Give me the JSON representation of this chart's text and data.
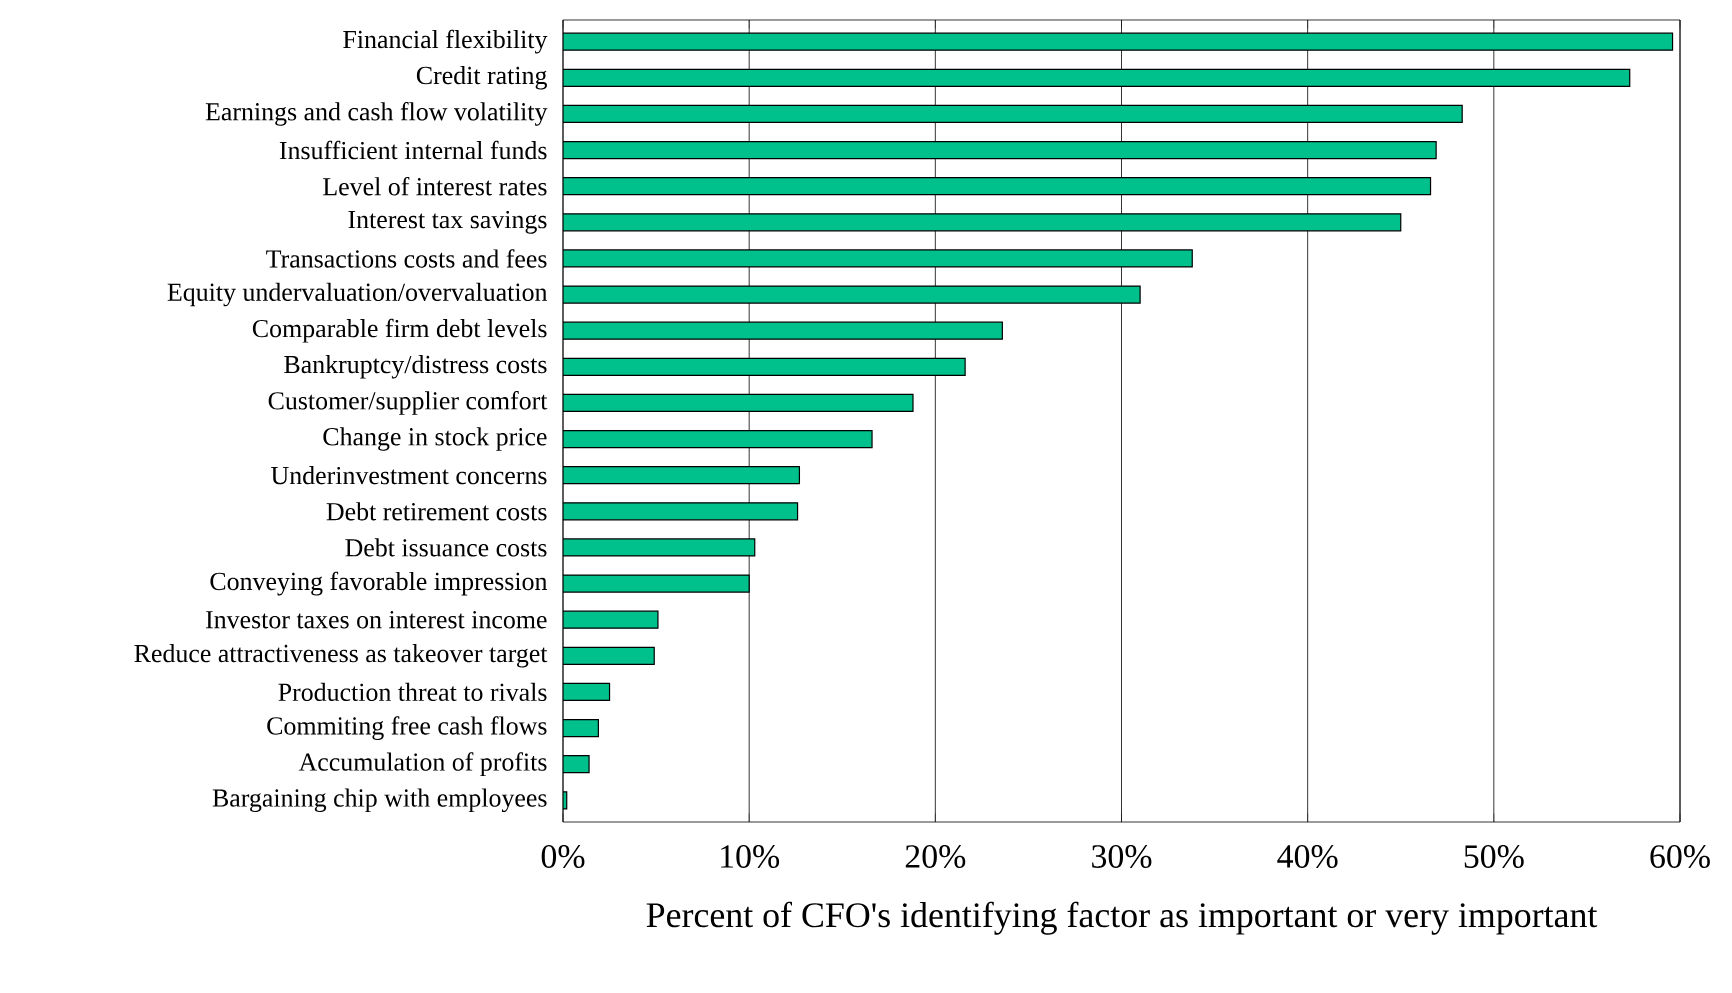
{
  "chart_data": {
    "type": "bar",
    "orientation": "horizontal",
    "xlabel": "Percent of CFO's identifying factor as important or very important",
    "categories": [
      "Financial flexibility",
      "Credit rating",
      "Earnings and cash flow volatility",
      "Insufficient internal funds",
      "Level of interest rates",
      "Interest tax savings",
      "Transactions costs and fees",
      "Equity undervaluation/overvaluation",
      "Comparable firm debt levels",
      "Bankruptcy/distress costs",
      "Customer/supplier comfort",
      "Change in stock price",
      "Underinvestment concerns",
      "Debt retirement costs",
      "Debt issuance costs",
      "Conveying favorable impression",
      "Investor taxes on interest income",
      "Reduce attractiveness as takeover target",
      "Production threat to rivals",
      "Commiting free cash flows",
      "Accumulation of profits",
      "Bargaining chip with employees"
    ],
    "values": [
      59.6,
      57.3,
      48.3,
      46.9,
      46.6,
      45.0,
      33.8,
      31.0,
      23.6,
      21.6,
      18.8,
      16.6,
      12.7,
      12.6,
      10.3,
      10.0,
      5.1,
      4.9,
      2.5,
      1.9,
      1.4,
      0.2
    ],
    "color": "#00c08b",
    "xlim": [
      0,
      60
    ],
    "xticks": [
      {
        "value": 0,
        "label": "0%"
      },
      {
        "value": 10,
        "label": "10%"
      },
      {
        "value": 20,
        "label": "20%"
      },
      {
        "value": 30,
        "label": "30%"
      },
      {
        "value": 40,
        "label": "40%"
      },
      {
        "value": 50,
        "label": "50%"
      },
      {
        "value": 60,
        "label": "60%"
      }
    ],
    "grid": "x"
  }
}
